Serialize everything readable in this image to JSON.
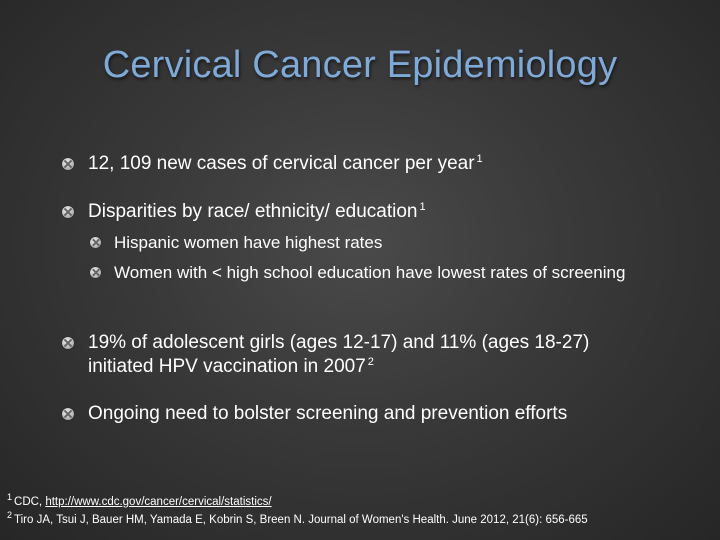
{
  "title": "Cervical Cancer Epidemiology",
  "bullets": [
    {
      "text": "12, 109 new cases of cervical cancer per year",
      "ref": "1"
    },
    {
      "text": "Disparities by race/ ethnicity/ education",
      "ref": "1",
      "sub": [
        {
          "text": "Hispanic women have highest rates"
        },
        {
          "text": "Women with < high school education have lowest rates of screening"
        }
      ]
    },
    {
      "text": "19% of adolescent girls (ages 12-17) and 11% (ages 18-27) initiated HPV vaccination in 2007",
      "ref": "2"
    },
    {
      "text": "Ongoing need to bolster screening and prevention efforts"
    }
  ],
  "references": [
    {
      "num": "1",
      "prefix": "CDC, ",
      "link": "http://www.cdc.gov/cancer/cervical/statistics/"
    },
    {
      "num": "2",
      "text": "Tiro JA, Tsui J, Bauer HM, Yamada E, Kobrin S, Breen N. Journal of Women's Health. June 2012, 21(6): 656-665"
    }
  ]
}
